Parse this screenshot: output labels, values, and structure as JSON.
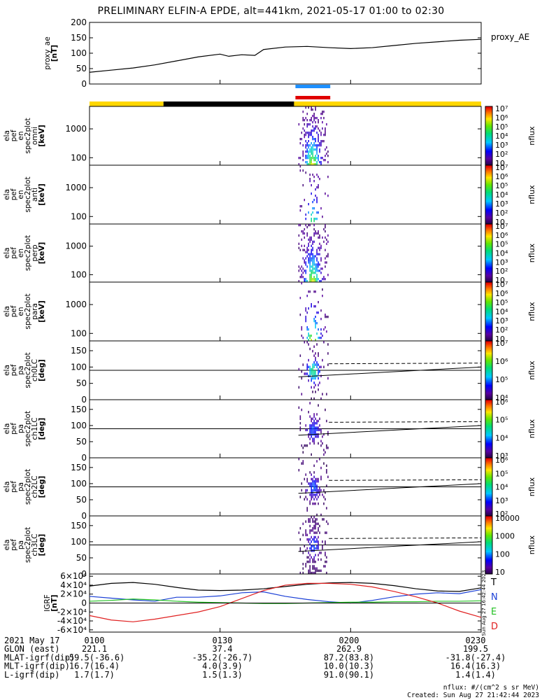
{
  "title": "PRELIMINARY ELFIN-A EPDE, alt=441km, 2021-05-17 01:00 to 02:30",
  "colors": {
    "sc_on": "#ffd700",
    "sc_off": "#000000",
    "bar_blue": "#1e90ff",
    "bar_red": "#e00000",
    "T": "#000000",
    "N": "#1a3fd6",
    "E": "#22c022",
    "D": "#e02020"
  },
  "time_axis": {
    "start": "01:00",
    "end": "02:30",
    "ticks": [
      "0100",
      "0130",
      "0200",
      "0230"
    ]
  },
  "spin_bar": {
    "segments": [
      {
        "start": "01:00",
        "end": "01:17",
        "state": "on"
      },
      {
        "start": "01:17",
        "end": "01:47",
        "state": "off"
      },
      {
        "start": "01:47",
        "end": "02:30",
        "state": "on"
      }
    ]
  },
  "science_bars": [
    {
      "color": "blue",
      "start": "01:47",
      "end": "01:55"
    },
    {
      "color": "red",
      "start": "01:47",
      "end": "01:55"
    }
  ],
  "science_window": {
    "start": "01:48",
    "end": "01:55"
  },
  "panels": [
    {
      "id": "proxy_ae",
      "ylabel_lines": [
        "proxy_ae",
        "[nT]"
      ],
      "side_label": "proxy_AE",
      "type": "line",
      "ylim": [
        0,
        200
      ],
      "yticks": [
        "0",
        "50",
        "100",
        "150",
        "200"
      ],
      "series": {
        "x": [
          "01:00",
          "01:05",
          "01:10",
          "01:15",
          "01:20",
          "01:25",
          "01:30",
          "01:32",
          "01:35",
          "01:38",
          "01:40",
          "01:45",
          "01:50",
          "01:55",
          "02:00",
          "02:05",
          "02:10",
          "02:15",
          "02:20",
          "02:25",
          "02:30"
        ],
        "y": [
          38,
          45,
          52,
          62,
          75,
          88,
          97,
          90,
          95,
          93,
          112,
          120,
          122,
          118,
          115,
          118,
          125,
          132,
          137,
          142,
          145
        ]
      }
    },
    {
      "id": "spec_omni",
      "ylabel_lines": [
        "ela",
        "pef",
        "en",
        "spec2plot",
        "omni",
        "[keV]"
      ],
      "type": "spectrogram",
      "scale": "log",
      "ylim": [
        55,
        6000
      ],
      "yticks": [
        "100",
        "1000"
      ],
      "colorbar": {
        "label": "nflux",
        "ticks": [
          "10",
          "10²",
          "10³",
          "10⁴",
          "10⁵",
          "10⁶",
          "10⁷"
        ]
      }
    },
    {
      "id": "spec_anti",
      "ylabel_lines": [
        "ela",
        "pef",
        "en",
        "spec2plot",
        "anti",
        "[keV]"
      ],
      "type": "spectrogram",
      "scale": "log",
      "ylim": [
        55,
        6000
      ],
      "yticks": [
        "100",
        "1000"
      ],
      "colorbar": {
        "label": "nflux",
        "ticks": [
          "10",
          "10²",
          "10³",
          "10⁴",
          "10⁵",
          "10⁶",
          "10⁷"
        ]
      }
    },
    {
      "id": "spec_perp",
      "ylabel_lines": [
        "ela",
        "pef",
        "en",
        "spec2plot",
        "perp",
        "[keV]"
      ],
      "type": "spectrogram",
      "scale": "log",
      "ylim": [
        55,
        6000
      ],
      "yticks": [
        "100",
        "1000"
      ],
      "colorbar": {
        "label": "nflux",
        "ticks": [
          "10",
          "10²",
          "10³",
          "10⁴",
          "10⁵",
          "10⁶",
          "10⁷"
        ]
      }
    },
    {
      "id": "spec_para",
      "ylabel_lines": [
        "ela",
        "pef",
        "en",
        "spec2plot",
        "para",
        "[keV]"
      ],
      "type": "spectrogram",
      "scale": "log",
      "ylim": [
        55,
        6000
      ],
      "yticks": [
        "100",
        "1000"
      ],
      "colorbar": {
        "label": "nflux",
        "ticks": [
          "10",
          "10²",
          "10³",
          "10⁴",
          "10⁵",
          "10⁶",
          "10⁷"
        ]
      }
    },
    {
      "id": "pa_ch0",
      "ylabel_lines": [
        "ela",
        "pef",
        "pa",
        "spec2plot",
        "ch0LC",
        "[deg]"
      ],
      "type": "pitch",
      "ylim": [
        0,
        180
      ],
      "yticks": [
        "0",
        "50",
        "100",
        "150"
      ],
      "colorbar": {
        "label": "nflux",
        "ticks": [
          "10⁴",
          "10⁵",
          "10⁶",
          "10⁷"
        ]
      },
      "lc": {
        "solid_y": [
          70,
          100
        ],
        "dashed_y": [
          110,
          112
        ]
      }
    },
    {
      "id": "pa_ch1",
      "ylabel_lines": [
        "ela",
        "pef",
        "pa",
        "spec2plot",
        "ch1LC",
        "[deg]"
      ],
      "type": "pitch",
      "ylim": [
        0,
        180
      ],
      "yticks": [
        "0",
        "50",
        "100",
        "150"
      ],
      "colorbar": {
        "label": "nflux",
        "ticks": [
          "10³",
          "10⁴",
          "10⁵",
          "10⁶"
        ]
      },
      "lc": {
        "solid_y": [
          70,
          100
        ],
        "dashed_y": [
          110,
          112
        ]
      }
    },
    {
      "id": "pa_ch2",
      "ylabel_lines": [
        "ela",
        "pef",
        "pa",
        "spec2plot",
        "ch2LC",
        "[deg]"
      ],
      "type": "pitch",
      "ylim": [
        0,
        180
      ],
      "yticks": [
        "0",
        "50",
        "100",
        "150"
      ],
      "colorbar": {
        "label": "nflux",
        "ticks": [
          "10²",
          "10³",
          "10⁴",
          "10⁵",
          "10⁶"
        ]
      },
      "lc": {
        "solid_y": [
          70,
          100
        ],
        "dashed_y": [
          110,
          112
        ]
      }
    },
    {
      "id": "pa_ch3",
      "ylabel_lines": [
        "ela",
        "pef",
        "pa",
        "spec2plot",
        "ch3LC",
        "[deg]"
      ],
      "type": "pitch",
      "ylim": [
        0,
        180
      ],
      "yticks": [
        "0",
        "50",
        "100",
        "150"
      ],
      "colorbar": {
        "label": "nflux",
        "ticks": [
          "10",
          "100",
          "1000",
          "10000"
        ]
      },
      "lc": {
        "solid_y": [
          70,
          100
        ],
        "dashed_y": [
          110,
          112
        ]
      }
    },
    {
      "id": "igrf",
      "ylabel_lines": [
        "IGRF",
        "[nT]"
      ],
      "type": "lines",
      "ylim": [
        -65000,
        65000
      ],
      "yticks": [
        "-6×10⁴",
        "-4×10⁴",
        "-2×10⁴",
        "0",
        "2×10⁴",
        "4×10⁴",
        "6×10⁴"
      ],
      "legend": [
        "T",
        "N",
        "E",
        "D"
      ],
      "side_text": "Sun Aug 27 16:42:44 2023",
      "series": {
        "x": [
          "01:00",
          "01:05",
          "01:10",
          "01:15",
          "01:20",
          "01:25",
          "01:30",
          "01:35",
          "01:40",
          "01:45",
          "01:50",
          "01:55",
          "02:00",
          "02:05",
          "02:10",
          "02:15",
          "02:20",
          "02:25",
          "02:30"
        ],
        "T": [
          38000,
          44000,
          46000,
          42000,
          35000,
          29000,
          28000,
          29000,
          32000,
          37000,
          42000,
          45000,
          46000,
          44000,
          39000,
          32000,
          27000,
          26000,
          34000
        ],
        "N": [
          15000,
          11000,
          7000,
          4000,
          13000,
          13000,
          16000,
          23000,
          25000,
          15000,
          8000,
          3000,
          0,
          6000,
          14000,
          20000,
          23000,
          21000,
          30000
        ],
        "E": [
          4000,
          6000,
          9000,
          7000,
          4000,
          2000,
          1000,
          0,
          -1000,
          -1000,
          0,
          1000,
          2000,
          2000,
          3000,
          3000,
          4000,
          4000,
          5000
        ],
        "D": [
          -28000,
          -38000,
          -42000,
          -36000,
          -28000,
          -20000,
          -8000,
          10000,
          28000,
          40000,
          44000,
          44000,
          42000,
          36000,
          26000,
          14000,
          0,
          -18000,
          -32000
        ]
      }
    }
  ],
  "footer": {
    "rows": [
      {
        "label": "2021 May 17",
        "values": [
          "0100",
          "0130",
          "0200",
          "0230"
        ]
      },
      {
        "label": "GLON (east)",
        "values": [
          "221.1",
          "37.4",
          "262.9",
          "199.5"
        ]
      },
      {
        "label": "MLAT-igrf(dip)",
        "values": [
          "-59.5(-36.6)",
          "-35.2(-26.7)",
          "87.2(83.8)",
          "-31.8(-27.4)"
        ]
      },
      {
        "label": "MLT-igrf(dip)",
        "values": [
          "16.7(16.4)",
          "4.0(3.9)",
          "10.0(10.3)",
          "16.4(16.3)"
        ]
      },
      {
        "label": "L-igrf(dip)",
        "values": [
          "1.7(1.7)",
          "1.5(1.3)",
          "91.0(90.1)",
          "1.4(1.4)"
        ]
      }
    ],
    "units_note": "nflux: #/(cm^2 s sr MeV)",
    "created": "Created: Sun Aug 27 21:42:44 2023"
  }
}
